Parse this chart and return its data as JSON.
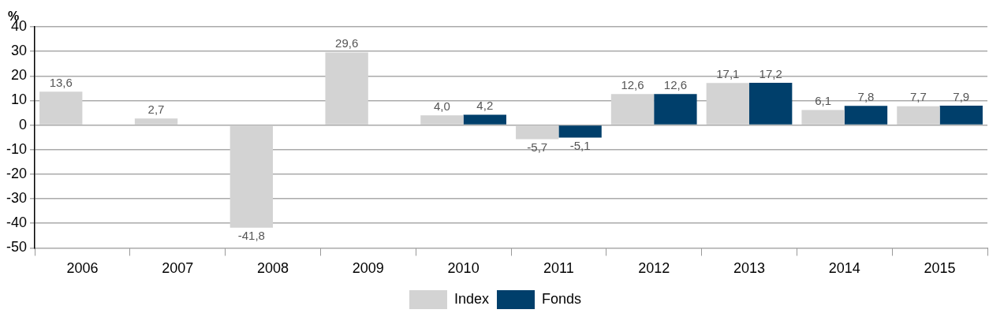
{
  "chart_data": {
    "type": "bar",
    "ylabel": "%",
    "categories": [
      "2006",
      "2007",
      "2008",
      "2009",
      "2010",
      "2011",
      "2012",
      "2013",
      "2014",
      "2015"
    ],
    "series": [
      {
        "name": "Index",
        "color": "#d3d3d3",
        "values": [
          13.6,
          2.7,
          -41.8,
          29.6,
          4.0,
          -5.7,
          12.6,
          17.1,
          6.1,
          7.7
        ],
        "value_labels": [
          "13,6",
          "2,7",
          "-41,8",
          "29,6",
          "4,0",
          "-5,7",
          "12,6",
          "17,1",
          "6,1",
          "7,7"
        ]
      },
      {
        "name": "Fonds",
        "color": "#003f6b",
        "values": [
          null,
          null,
          null,
          null,
          4.2,
          -5.1,
          12.6,
          17.2,
          7.8,
          7.9
        ],
        "value_labels": [
          null,
          null,
          null,
          null,
          "4,2",
          "-5,1",
          "12,6",
          "17,2",
          "7,8",
          "7,9"
        ]
      }
    ],
    "ylim": [
      -50,
      40
    ],
    "yticks": [
      -50,
      -40,
      -30,
      -20,
      -10,
      0,
      10,
      20,
      30,
      40
    ],
    "grid": "y",
    "legend": "bottom"
  }
}
